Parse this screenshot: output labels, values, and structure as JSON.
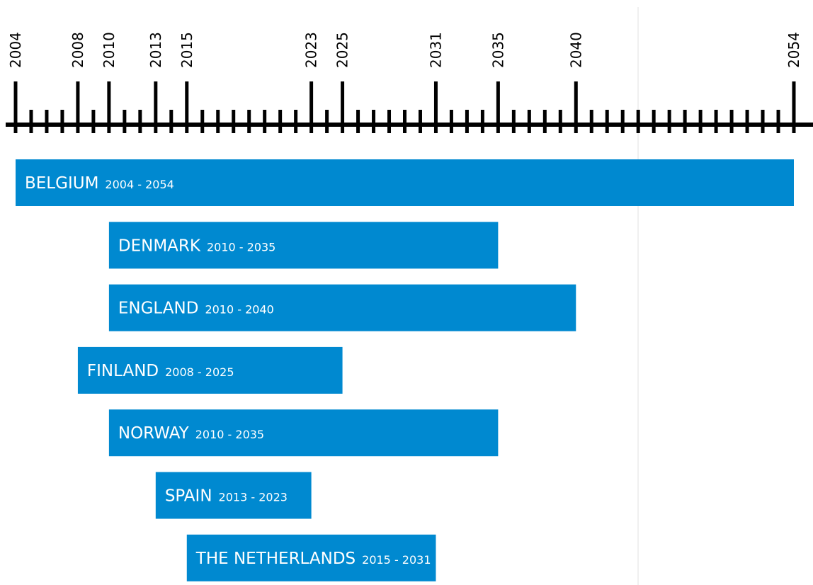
{
  "chart_data": {
    "type": "timeline",
    "x_range": [
      2004,
      2054
    ],
    "labeled_ticks": [
      2004,
      2008,
      2010,
      2013,
      2015,
      2023,
      2025,
      2031,
      2035,
      2040,
      2054
    ],
    "minor_tick_step": 1,
    "bar_color": "#0089D0",
    "axis_color": "#000000",
    "bars": [
      {
        "label": "BELGIUM",
        "start": 2004,
        "end": 2054,
        "range_text": "2004 - 2054"
      },
      {
        "label": "DENMARK",
        "start": 2010,
        "end": 2035,
        "range_text": "2010 - 2035"
      },
      {
        "label": "ENGLAND",
        "start": 2010,
        "end": 2040,
        "range_text": "2010 - 2040"
      },
      {
        "label": "FINLAND",
        "start": 2008,
        "end": 2025,
        "range_text": "2008 - 2025"
      },
      {
        "label": "NORWAY",
        "start": 2010,
        "end": 2035,
        "range_text": "2010 - 2035"
      },
      {
        "label": "SPAIN",
        "start": 2013,
        "end": 2023,
        "range_text": "2013 - 2023"
      },
      {
        "label": "THE NETHERLANDS",
        "start": 2015,
        "end": 2031,
        "range_text": "2015 - 2031"
      }
    ]
  }
}
